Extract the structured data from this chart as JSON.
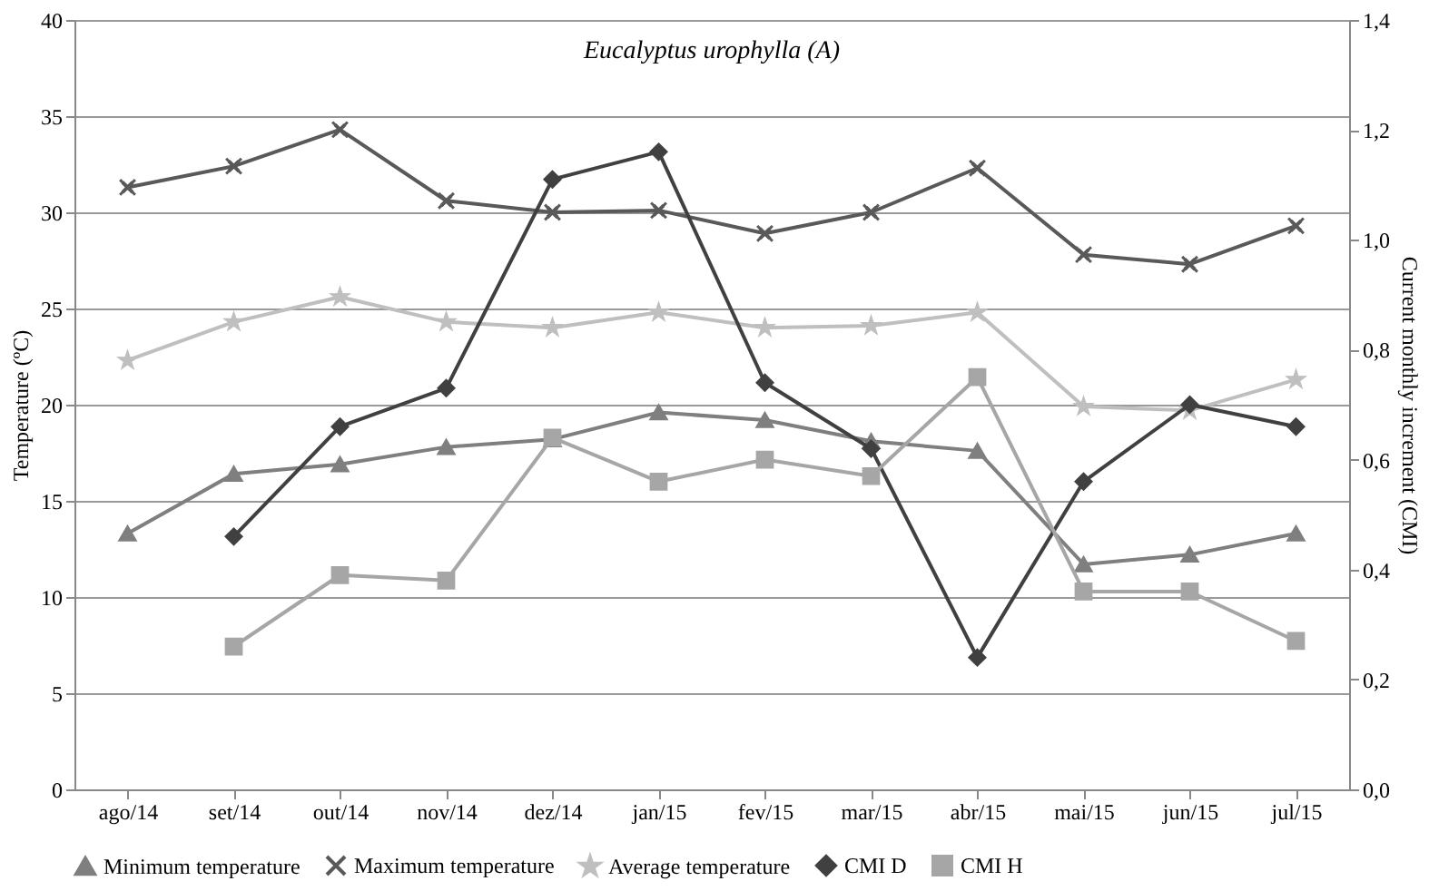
{
  "chart_data": {
    "type": "line",
    "title": "Eucalyptus urophylla (A)",
    "ylabel": "Temperature (ºC)",
    "y2label": "Current monthly increment  (CMI)",
    "categories": [
      "ago/14",
      "set/14",
      "out/14",
      "nov/14",
      "dez/14",
      "jan/15",
      "fev/15",
      "mar/15",
      "abr/15",
      "mai/15",
      "jun/15",
      "jul/15"
    ],
    "series": [
      {
        "name": "Minimum temperature",
        "color": "#7f7f7f",
        "marker": "triangle",
        "values": [
          13.3,
          16.4,
          16.9,
          17.8,
          18.2,
          19.6,
          19.2,
          18.1,
          17.6,
          11.7,
          12.2,
          13.3
        ]
      },
      {
        "name": "Maximum temperature",
        "color": "#595959",
        "marker": "cross",
        "values": [
          31.3,
          32.4,
          34.3,
          30.6,
          30.0,
          30.1,
          28.9,
          30.0,
          32.3,
          27.8,
          27.3,
          29.3
        ]
      },
      {
        "name": "Average temperature",
        "color": "#bfbfbf",
        "marker": "star",
        "values": [
          22.3,
          24.3,
          25.6,
          24.3,
          24.0,
          24.8,
          24.0,
          24.1,
          24.8,
          19.9,
          19.7,
          21.3
        ]
      },
      {
        "name": "CMI D",
        "color": "#404040",
        "marker": "diamond",
        "axis": "y2",
        "values": [
          null,
          0.46,
          0.66,
          0.73,
          1.11,
          1.16,
          0.74,
          0.62,
          0.24,
          0.56,
          0.7,
          0.66
        ]
      },
      {
        "name": "CMI H",
        "color": "#a6a6a6",
        "marker": "square",
        "axis": "y2",
        "values": [
          null,
          0.26,
          0.39,
          0.38,
          0.64,
          0.56,
          0.6,
          0.57,
          0.75,
          0.36,
          0.36,
          0.27
        ]
      }
    ],
    "ylim": [
      0,
      40
    ],
    "yticks": [
      0,
      5,
      10,
      15,
      20,
      25,
      30,
      35,
      40
    ],
    "y2lim": [
      0,
      1.4
    ],
    "y2ticks": [
      {
        "value": 0,
        "label": "0,0"
      },
      {
        "value": 0.2,
        "label": "0,2"
      },
      {
        "value": 0.4,
        "label": "0,4"
      },
      {
        "value": 0.6,
        "label": "0,6"
      },
      {
        "value": 0.8,
        "label": "0,8"
      },
      {
        "value": 1.0,
        "label": "1,0"
      },
      {
        "value": 1.2,
        "label": "1,2"
      },
      {
        "value": 1.4,
        "label": "1,4"
      }
    ],
    "grid": "y",
    "legend": "bottom"
  }
}
